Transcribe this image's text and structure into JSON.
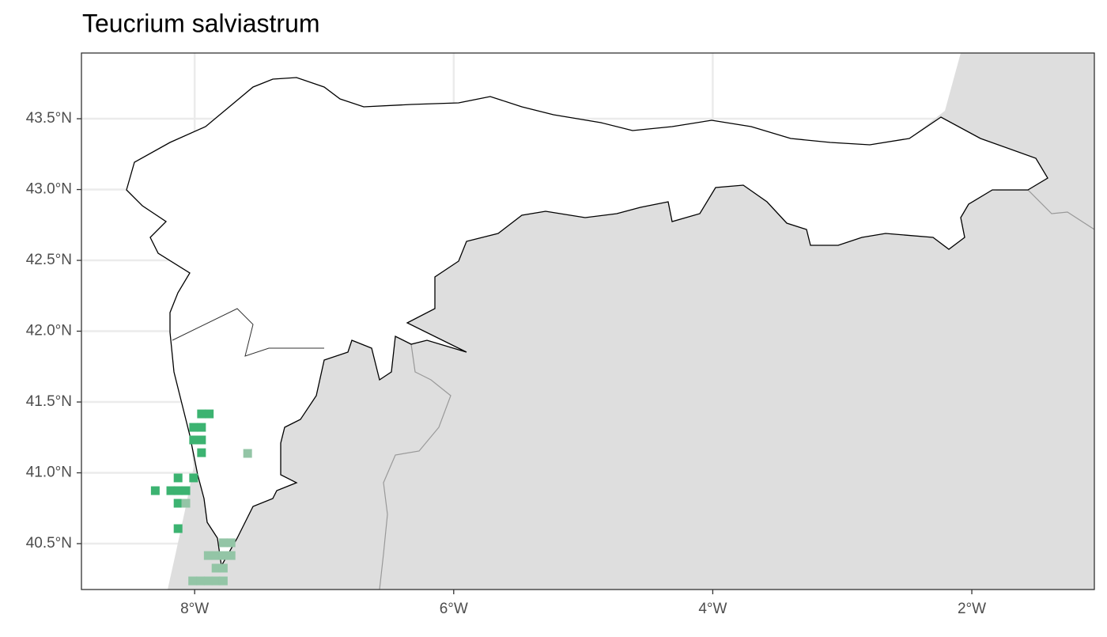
{
  "chart_data": {
    "type": "map",
    "title": "Teucrium salviastrum",
    "xlim": [
      -8.874,
      -1.054
    ],
    "ylim": [
      40.176,
      43.964
    ],
    "xticks": [
      {
        "value": -8,
        "label": "8°W"
      },
      {
        "value": -6,
        "label": "6°W"
      },
      {
        "value": -4,
        "label": "4°W"
      },
      {
        "value": -2,
        "label": "2°W"
      }
    ],
    "yticks": [
      {
        "value": 40.5,
        "label": "40.5°N"
      },
      {
        "value": 41.0,
        "label": "41.0°N"
      },
      {
        "value": 41.5,
        "label": "41.5°N"
      },
      {
        "value": 42.0,
        "label": "42.0°N"
      },
      {
        "value": 42.5,
        "label": "42.5°N"
      },
      {
        "value": 43.0,
        "label": "43.0°N"
      },
      {
        "value": 43.5,
        "label": "43.5°N"
      }
    ],
    "grid": true,
    "points": [
      {
        "color": "#3cb371",
        "x": [
          -7.947,
          -7.887,
          -8.008,
          -7.947,
          -8.008,
          -7.947,
          -7.947,
          -8.128,
          -8.008,
          -8.304,
          -8.184,
          -8.128,
          -8.068,
          -8.128,
          -8.128
        ],
        "y": [
          41.416,
          41.416,
          41.321,
          41.321,
          41.232,
          41.232,
          41.142,
          40.964,
          40.964,
          40.874,
          40.874,
          40.874,
          40.874,
          40.785,
          40.606
        ]
      },
      {
        "color": "#93c5a6",
        "x": [
          -7.591,
          -8.068,
          -7.779,
          -7.719,
          -7.895,
          -7.835,
          -7.779,
          -7.719,
          -7.835,
          -7.779,
          -8.015,
          -7.955,
          -7.895,
          -7.835,
          -7.779
        ],
        "y": [
          41.137,
          40.785,
          40.506,
          40.506,
          40.416,
          40.416,
          40.416,
          40.416,
          40.327,
          40.327,
          40.237,
          40.237,
          40.237,
          40.237,
          40.237
        ]
      }
    ]
  }
}
